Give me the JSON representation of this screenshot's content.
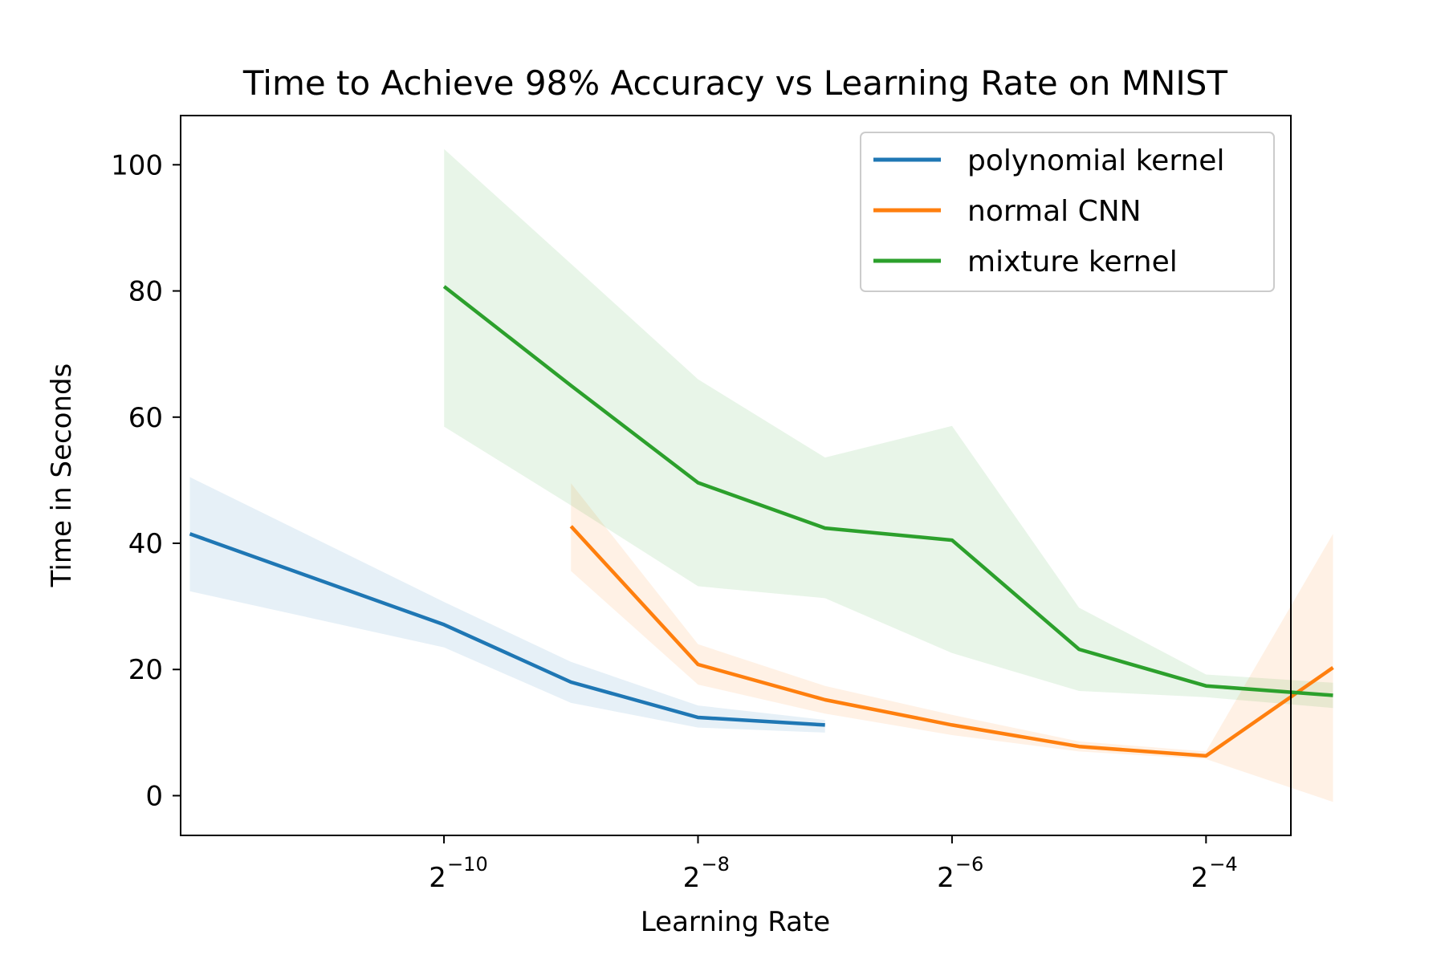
{
  "chart_data": {
    "type": "line",
    "title": "Time to Achieve 98% Accuracy vs Learning Rate on MNIST",
    "xlabel": "Learning Rate",
    "ylabel": "Time in Seconds",
    "x_scale": "log2",
    "xlim": [
      0.000232,
      0.0993
    ],
    "ylim": [
      -6.3,
      107.8
    ],
    "x_ticks": [
      {
        "value": 0.0009765625,
        "base": "2",
        "exp": "−10"
      },
      {
        "value": 0.00390625,
        "base": "2",
        "exp": "−8"
      },
      {
        "value": 0.015625,
        "base": "2",
        "exp": "−6"
      },
      {
        "value": 0.0625,
        "base": "2",
        "exp": "−4"
      }
    ],
    "y_ticks": [
      0,
      20,
      40,
      60,
      80,
      100
    ],
    "legend_position": "top-right",
    "series": [
      {
        "name": "polynomial kernel",
        "color": "#1f77b4",
        "x": [
          0.000244,
          0.000977,
          0.001953,
          0.003906,
          0.007813
        ],
        "y": [
          41.5,
          27.1,
          18.0,
          12.4,
          11.2
        ],
        "lower": [
          32.4,
          23.5,
          14.7,
          10.8,
          10.0
        ],
        "upper": [
          50.5,
          30.7,
          21.2,
          14.3,
          12.0
        ]
      },
      {
        "name": "normal CNN",
        "color": "#ff7f0e",
        "x": [
          0.001953,
          0.003906,
          0.007813,
          0.015625,
          0.03125,
          0.0625,
          0.125
        ],
        "y": [
          42.7,
          20.8,
          15.2,
          11.2,
          7.8,
          6.3,
          20.3
        ],
        "lower": [
          35.6,
          17.6,
          13.0,
          9.6,
          7.0,
          5.8,
          -1.0
        ],
        "upper": [
          49.5,
          24.0,
          17.4,
          12.8,
          8.6,
          7.0,
          41.5
        ]
      },
      {
        "name": "mixture kernel",
        "color": "#2ca02c",
        "x": [
          0.000977,
          0.001953,
          0.003906,
          0.007813,
          0.015625,
          0.03125,
          0.0625,
          0.125
        ],
        "y": [
          80.7,
          65.0,
          49.6,
          42.4,
          40.5,
          23.2,
          17.4,
          15.9
        ],
        "lower": [
          58.5,
          46.0,
          33.2,
          31.3,
          22.6,
          16.6,
          15.6,
          13.9
        ],
        "upper": [
          102.5,
          84.3,
          66.0,
          53.6,
          58.6,
          29.8,
          19.2,
          17.9
        ]
      }
    ]
  }
}
